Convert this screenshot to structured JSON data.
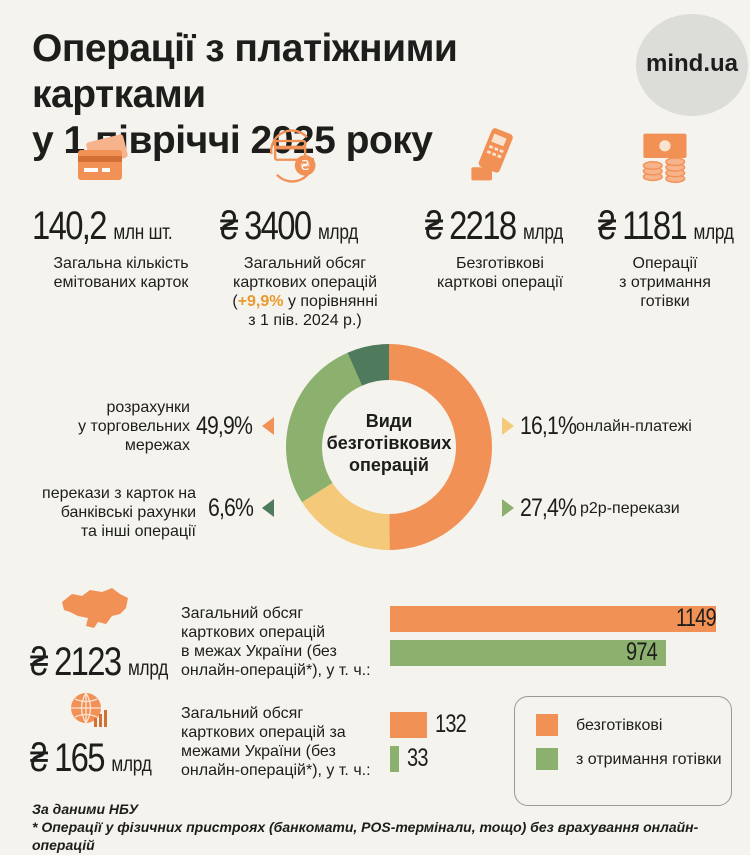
{
  "header": {
    "title_line1": "Операції з платіжними картками",
    "title_line2": "у 1 півріччі 2025 року",
    "logo": "mind.ua"
  },
  "colors": {
    "orange": "#f29155",
    "yellow": "#f5c97a",
    "green": "#8cb06e",
    "dark_green": "#4f7a5b",
    "accent": "#e89b2c"
  },
  "stats": [
    {
      "icon": "credit-card-icon",
      "value": "140,2",
      "unit": "млн шт.",
      "desc": [
        "Загальна кількість",
        "емітованих карток"
      ]
    },
    {
      "icon": "card-exchange-icon",
      "value": "₴ 3400",
      "unit": "млрд",
      "desc": [
        "Загальний обсяг",
        "карткових операцій"
      ],
      "change": "+9,9%",
      "change_rest": " у порівнянні",
      "change_line2": "з 1 пів. 2024 р.)",
      "paren": "("
    },
    {
      "icon": "pos-terminal-icon",
      "value": "₴ 2218",
      "unit": "млрд",
      "desc": [
        "Безготівкові",
        "карткові операції"
      ]
    },
    {
      "icon": "cash-coins-icon",
      "value": "₴ 1181",
      "unit": "млрд",
      "desc": [
        "Операції",
        "з отримання",
        "готівки"
      ]
    }
  ],
  "chart_data": [
    {
      "type": "pie",
      "title": "Види безготівкових операцій",
      "title_lines": [
        "Види",
        "безготівкових",
        "операцій"
      ],
      "unit": "%",
      "slices": [
        {
          "label": "розрахунки у торговельних мережах",
          "label_lines": [
            "розрахунки",
            "у торговельних",
            "мережах"
          ],
          "value": 49.9,
          "value_label": "49,9%",
          "color": "#f29155"
        },
        {
          "label": "онлайн-платежі",
          "label_lines": [
            "онлайн-платежі"
          ],
          "value": 16.1,
          "value_label": "16,1%",
          "color": "#f5c97a"
        },
        {
          "label": "p2p-перекази",
          "label_lines": [
            "p2p-перекази"
          ],
          "value": 27.4,
          "value_label": "27,4%",
          "color": "#8cb06e"
        },
        {
          "label": "перекази з карток на банківські рахунки та інші операції",
          "label_lines": [
            "перекази з карток на",
            "банківські рахунки",
            "та інші операції"
          ],
          "value": 6.6,
          "value_label": "6,6%",
          "color": "#4f7a5b"
        }
      ]
    },
    {
      "type": "bar",
      "orientation": "horizontal",
      "unit": "млрд грн",
      "legend": [
        "безготівкові",
        "з отримання готівки"
      ],
      "legend_position": "bottom-right",
      "groups": [
        {
          "icon": "ukraine-map-icon",
          "total": "₴ 2123",
          "total_unit": "млрд",
          "desc": [
            "Загальний обсяг",
            "карткових операцій",
            "в межах України (без",
            "онлайн-операцій*), у т. ч.:"
          ],
          "series": [
            {
              "name": "безготівкові",
              "value": 1149,
              "value_label": "1149",
              "color": "#f29155"
            },
            {
              "name": "з отримання готівки",
              "value": 974,
              "value_label": "974",
              "color": "#8cb06e"
            }
          ]
        },
        {
          "icon": "globe-chart-icon",
          "total": "₴ 165",
          "total_unit": "млрд",
          "desc": [
            "Загальний обсяг",
            "карткових операцій за",
            "межами України (без",
            "онлайн-операцій*), у т. ч.:"
          ],
          "series": [
            {
              "name": "безготівкові",
              "value": 132,
              "value_label": "132",
              "color": "#f29155"
            },
            {
              "name": "з отримання готівки",
              "value": 33,
              "value_label": "33",
              "color": "#8cb06e"
            }
          ]
        }
      ]
    }
  ],
  "footer": {
    "source": "За даними НБУ",
    "note": "* Операції у фізичних пристроях (банкомати, POS-термінали, тощо) без врахування онлайн-операцій"
  }
}
